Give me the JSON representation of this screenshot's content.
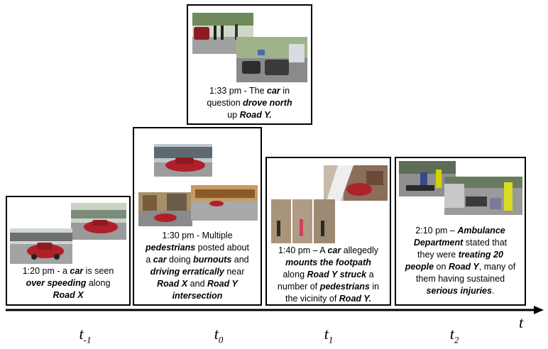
{
  "events": [
    {
      "id": "t-1",
      "caption": [
        [
          {
            "t": "1:20 pm - a "
          },
          {
            "t": "car",
            "b": true
          },
          {
            "t": " is seen"
          }
        ],
        [
          {
            "t": "over speeding",
            "b": true
          },
          {
            "t": " along"
          }
        ],
        [
          {
            "t": "Road X",
            "b": true
          }
        ]
      ],
      "timeline_label": "t",
      "timeline_sub": "-1"
    },
    {
      "id": "t0",
      "caption": [
        [
          {
            "t": "1:30 pm - Multiple"
          }
        ],
        [
          {
            "t": "pedestrians",
            "b": true
          },
          {
            "t": " posted about"
          }
        ],
        [
          {
            "t": "a "
          },
          {
            "t": "car",
            "b": true
          },
          {
            "t": " doing "
          },
          {
            "t": "burnouts",
            "b": true
          },
          {
            "t": " and"
          }
        ],
        [
          {
            "t": "driving erratically",
            "b": true
          },
          {
            "t": " near"
          }
        ],
        [
          {
            "t": "Road X",
            "b": true
          },
          {
            "t": " and "
          },
          {
            "t": "Road Y",
            "b": true
          }
        ],
        [
          {
            "t": "intersection",
            "b": true
          }
        ]
      ],
      "timeline_label": "t",
      "timeline_sub": "0"
    },
    {
      "id": "t0-top",
      "caption": [
        [
          {
            "t": "1:33 pm - The "
          },
          {
            "t": "car",
            "b": true
          },
          {
            "t": " in"
          }
        ],
        [
          {
            "t": "question "
          },
          {
            "t": "drove north",
            "b": true
          }
        ],
        [
          {
            "t": "up "
          },
          {
            "t": "Road Y.",
            "b": true
          }
        ]
      ]
    },
    {
      "id": "t1",
      "caption": [
        [
          {
            "t": "1:40 pm – A "
          },
          {
            "t": "car",
            "b": true
          },
          {
            "t": " allegedly"
          }
        ],
        [
          {
            "t": "mounts the footpath",
            "b": true
          }
        ],
        [
          {
            "t": "along "
          },
          {
            "t": "Road Y struck",
            "b": true
          },
          {
            "t": " a"
          }
        ],
        [
          {
            "t": "number of "
          },
          {
            "t": "pedestrians",
            "b": true
          },
          {
            "t": " in"
          }
        ],
        [
          {
            "t": "the vicinity of "
          },
          {
            "t": "Road Y.",
            "b": true
          }
        ]
      ],
      "timeline_label": "t",
      "timeline_sub": "1"
    },
    {
      "id": "t2",
      "caption": [
        [
          {
            "t": "2:10 pm – "
          },
          {
            "t": "Ambulance",
            "b": true
          }
        ],
        [
          {
            "t": "Department",
            "b": true
          },
          {
            "t": "  stated that"
          }
        ],
        [
          {
            "t": "they were "
          },
          {
            "t": "treating 20",
            "b": true
          }
        ],
        [
          {
            "t": "people",
            "b": true
          },
          {
            "t": " on "
          },
          {
            "t": "Road Y",
            "b": true
          },
          {
            "t": ", many of"
          }
        ],
        [
          {
            "t": "them having sustained"
          }
        ],
        [
          {
            "t": "serious injuries",
            "b": true
          },
          {
            "t": "."
          }
        ]
      ],
      "timeline_label": "t",
      "timeline_sub": "2"
    }
  ],
  "axis": {
    "label": "t"
  },
  "colors": {
    "line": "#000000",
    "car_red": "#b0202a",
    "road": "#9a9a9a",
    "sky": "#d8e4ea"
  }
}
